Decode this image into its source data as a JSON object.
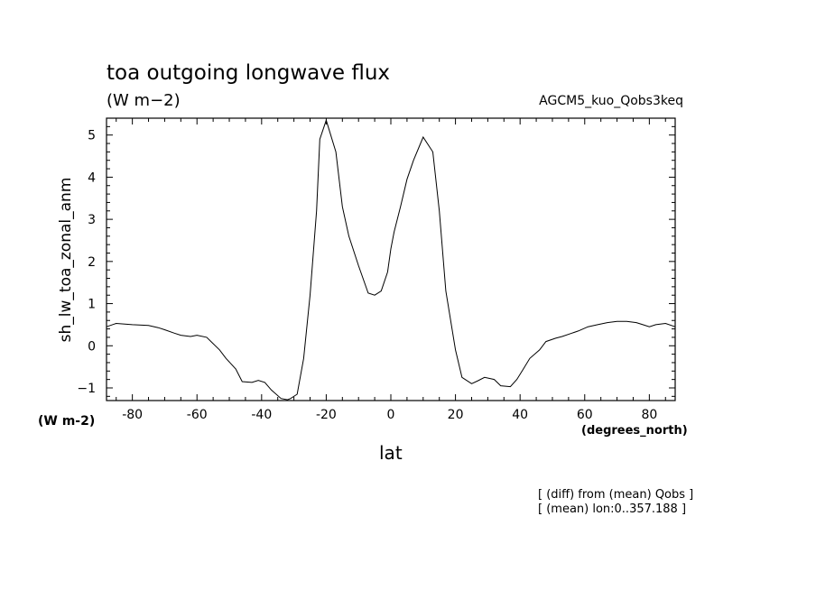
{
  "header": {
    "title": "toa outgoing longwave flux",
    "units": "(W m−2)",
    "experiment": "AGCM5_kuo_Qobs3keq"
  },
  "axes": {
    "y_units": "(W m-2)",
    "x_units": "(degrees_north)"
  },
  "notes": {
    "line1": "[ (diff) from (mean) Qobs ]",
    "line2": "[ (mean) lon:0..357.188 ]"
  },
  "chart_data": {
    "type": "line",
    "xlabel": "lat",
    "ylabel": "sh_lw_toa_zonal_anm",
    "xlim": [
      -88,
      88
    ],
    "ylim": [
      -1.3,
      5.4
    ],
    "xticks": [
      -80,
      -60,
      -40,
      -20,
      0,
      20,
      40,
      60,
      80
    ],
    "yticks": [
      -1,
      0,
      1,
      2,
      3,
      4,
      5
    ],
    "grid": false,
    "line_color": "#000000",
    "series": [
      {
        "x": [
          -88,
          -85,
          -80,
          -75,
          -72,
          -70,
          -67,
          -65,
          -62,
          -60,
          -57,
          -55,
          -53,
          -51,
          -48,
          -46,
          -43,
          -41,
          -39,
          -37,
          -34,
          -32,
          -31,
          -29,
          -27,
          -25,
          -23,
          -22,
          -20,
          -17,
          -15,
          -13,
          -10,
          -7,
          -5,
          -3,
          -1,
          0,
          1,
          3,
          5,
          7,
          10,
          13,
          15,
          17,
          20,
          22,
          25,
          27,
          29,
          32,
          34,
          37,
          39,
          41,
          43,
          46,
          48,
          51,
          53,
          56,
          58,
          61,
          64,
          67,
          70,
          73,
          76,
          78,
          80,
          82,
          85,
          88
        ],
        "y": [
          0.45,
          0.53,
          0.5,
          0.48,
          0.43,
          0.38,
          0.3,
          0.25,
          0.22,
          0.25,
          0.2,
          0.05,
          -0.1,
          -0.3,
          -0.55,
          -0.85,
          -0.87,
          -0.82,
          -0.87,
          -1.05,
          -1.25,
          -1.28,
          -1.25,
          -1.15,
          -0.3,
          1.2,
          3.2,
          4.9,
          5.35,
          4.6,
          3.3,
          2.6,
          1.9,
          1.25,
          1.2,
          1.3,
          1.75,
          2.3,
          2.7,
          3.3,
          3.95,
          4.4,
          4.95,
          4.6,
          3.2,
          1.3,
          -0.1,
          -0.75,
          -0.9,
          -0.83,
          -0.75,
          -0.8,
          -0.95,
          -0.97,
          -0.8,
          -0.55,
          -0.3,
          -0.1,
          0.1,
          0.18,
          0.22,
          0.3,
          0.35,
          0.45,
          0.5,
          0.55,
          0.58,
          0.58,
          0.55,
          0.5,
          0.45,
          0.5,
          0.53,
          0.45
        ]
      }
    ]
  }
}
